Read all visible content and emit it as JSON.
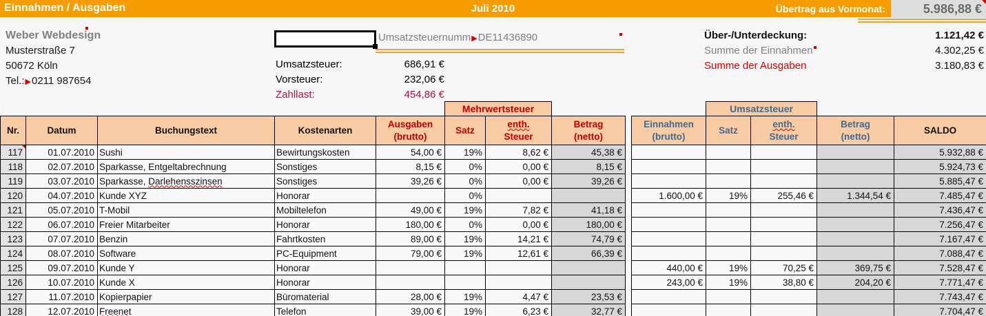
{
  "title_bar": {
    "title": "Einnahmen / Ausgaben",
    "month": "Juli 2010",
    "carryover_label": "Übertrag aus Vormonat:",
    "carryover_value": "5.986,88 €"
  },
  "company": {
    "name": "Weber Webdesign",
    "street": "Musterstraße 7",
    "city": "50672 Köln",
    "phone_label": "Tel.:",
    "phone": "0211 987654"
  },
  "vat_box": {
    "selected_cell_value": "",
    "vat_id_label": "Umsatzsteuernumm",
    "vat_id": "DE11436890",
    "rows": [
      {
        "label": "Umsatzsteuer:",
        "value": "686,91 €"
      },
      {
        "label": "Vorsteuer:",
        "value": "232,06 €"
      },
      {
        "label": "Zahllast:",
        "value": "454,86 €"
      }
    ]
  },
  "summary": {
    "rows": [
      {
        "label": "Über-/Unterdeckung:",
        "value": "1.121,42 €"
      },
      {
        "label": "Summe der Einnahmen",
        "value": "4.302,25 €"
      },
      {
        "label": "Summe der Ausgaben",
        "value": "3.180,83 €"
      }
    ]
  },
  "table": {
    "groups": {
      "expenses": "Mehrwertsteuer",
      "income": "Umsatzsteuer"
    },
    "headers": {
      "nr": "Nr.",
      "datum": "Datum",
      "buchungstext": "Buchungstext",
      "kostenarten": "Kostenarten",
      "ausgaben_1": "Ausgaben",
      "ausgaben_2": "(brutto)",
      "satz": "Satz",
      "enth_1": "enth.",
      "enth_2": "Steuer",
      "betrag_1": "Betrag",
      "betrag_2": "(netto)",
      "einnahmen_1": "Einnahmen",
      "einnahmen_2": "(brutto)",
      "saldo": "SALDO"
    },
    "rows": [
      {
        "nr": "117",
        "nr_comment": true,
        "datum": "01.07.2010",
        "text": "Sushi",
        "kostenart": "Bewirtungskosten",
        "ausgaben": "54,00 €",
        "satz_a": "19%",
        "steuer_a": "8,62 €",
        "netto_a": "45,38 €",
        "einnahmen": "",
        "satz_e": "",
        "steuer_e": "",
        "netto_e": "",
        "saldo": "5.932,88 €"
      },
      {
        "nr": "118",
        "datum": "02.07.2010",
        "text": "Sparkasse, Entgeltabrechnung",
        "kostenart": "Sonstiges",
        "ausgaben": "8,15 €",
        "satz_a": "0%",
        "steuer_a": "0,00 €",
        "netto_a": "8,15 €",
        "einnahmen": "",
        "satz_e": "",
        "steuer_e": "",
        "netto_e": "",
        "saldo": "5.924,73 €"
      },
      {
        "nr": "119",
        "datum": "03.07.2010",
        "text": "Sparkasse, ",
        "text_wavy": "Darlehensszinsen",
        "kostenart": "Sonstiges",
        "ausgaben": "39,26 €",
        "satz_a": "0%",
        "steuer_a": "0,00 €",
        "netto_a": "39,26 €",
        "einnahmen": "",
        "satz_e": "",
        "steuer_e": "",
        "netto_e": "",
        "saldo": "5.885,47 €"
      },
      {
        "nr": "120",
        "datum": "04.07.2010",
        "text": "Kunde XYZ",
        "kostenart": "Honorar",
        "ausgaben": "",
        "satz_a": "0%",
        "steuer_a": "",
        "netto_a": "",
        "einnahmen": "1.600,00 €",
        "satz_e": "19%",
        "steuer_e": "255,46 €",
        "netto_e": "1.344,54 €",
        "saldo": "7.485,47 €"
      },
      {
        "nr": "121",
        "datum": "05.07.2010",
        "text": "T-Mobil",
        "kostenart": "Mobiltelefon",
        "ausgaben": "49,00 €",
        "satz_a": "19%",
        "steuer_a": "7,82 €",
        "netto_a": "41,18 €",
        "einnahmen": "",
        "satz_e": "",
        "steuer_e": "",
        "netto_e": "",
        "saldo": "7.436,47 €"
      },
      {
        "nr": "122",
        "datum": "06.07.2010",
        "text": "Freier Mitarbeiter",
        "kostenart": "Honorar",
        "ausgaben": "180,00 €",
        "satz_a": "0%",
        "steuer_a": "0,00 €",
        "netto_a": "180,00 €",
        "einnahmen": "",
        "satz_e": "",
        "steuer_e": "",
        "netto_e": "",
        "saldo": "7.256,47 €"
      },
      {
        "nr": "123",
        "datum": "07.07.2010",
        "text": "Benzin",
        "kostenart": "Fahrtkosten",
        "ausgaben": "89,00 €",
        "satz_a": "19%",
        "steuer_a": "14,21 €",
        "netto_a": "74,79 €",
        "einnahmen": "",
        "satz_e": "",
        "steuer_e": "",
        "netto_e": "",
        "saldo": "7.167,47 €"
      },
      {
        "nr": "124",
        "datum": "08.07.2010",
        "text": "Software",
        "kostenart": "PC-Equipment",
        "ausgaben": "79,00 €",
        "satz_a": "19%",
        "steuer_a": "12,61 €",
        "netto_a": "66,39 €",
        "einnahmen": "",
        "satz_e": "",
        "steuer_e": "",
        "netto_e": "",
        "saldo": "7.088,47 €"
      },
      {
        "nr": "125",
        "datum": "09.07.2010",
        "text": "Kunde Y",
        "kostenart": "Honorar",
        "ausgaben": "",
        "satz_a": "",
        "steuer_a": "",
        "netto_a": "",
        "einnahmen": "440,00 €",
        "satz_e": "19%",
        "steuer_e": "70,25 €",
        "netto_e": "369,75 €",
        "saldo": "7.528,47 €"
      },
      {
        "nr": "126",
        "datum": "10.07.2010",
        "text": "Kunde X",
        "kostenart": "Honorar",
        "ausgaben": "",
        "satz_a": "",
        "steuer_a": "",
        "netto_a": "",
        "einnahmen": "243,00 €",
        "satz_e": "19%",
        "steuer_e": "38,80 €",
        "netto_e": "204,20 €",
        "saldo": "7.771,47 €"
      },
      {
        "nr": "127",
        "datum": "11.07.2010",
        "text": "Kopierpapier",
        "kostenart": "Büromaterial",
        "ausgaben": "28,00 €",
        "satz_a": "19%",
        "steuer_a": "4,47 €",
        "netto_a": "23,53 €",
        "einnahmen": "",
        "satz_e": "",
        "steuer_e": "",
        "netto_e": "",
        "saldo": "7.743,47 €"
      },
      {
        "nr": "128",
        "datum": "12.07.2010",
        "text": "",
        "text_wavy": "Freenet",
        "kostenart": "Telefon",
        "ausgaben": "39,00 €",
        "satz_a": "19%",
        "steuer_a": "6,23 €",
        "netto_a": "32,77 €",
        "einnahmen": "",
        "satz_e": "",
        "steuer_e": "",
        "netto_e": "",
        "saldo": "7.704,47 €"
      }
    ]
  },
  "colors": {
    "title_bar_orange": "#f49c00",
    "header_peach": "#f7cba4",
    "expense_red": "#c00000",
    "income_blue": "#44698c",
    "zahllast_crimson": "#b01243",
    "sum_ausgaben_red": "#d40000",
    "gray_column": "#d7d7d7",
    "carry_cell_gray": "#dedede"
  }
}
